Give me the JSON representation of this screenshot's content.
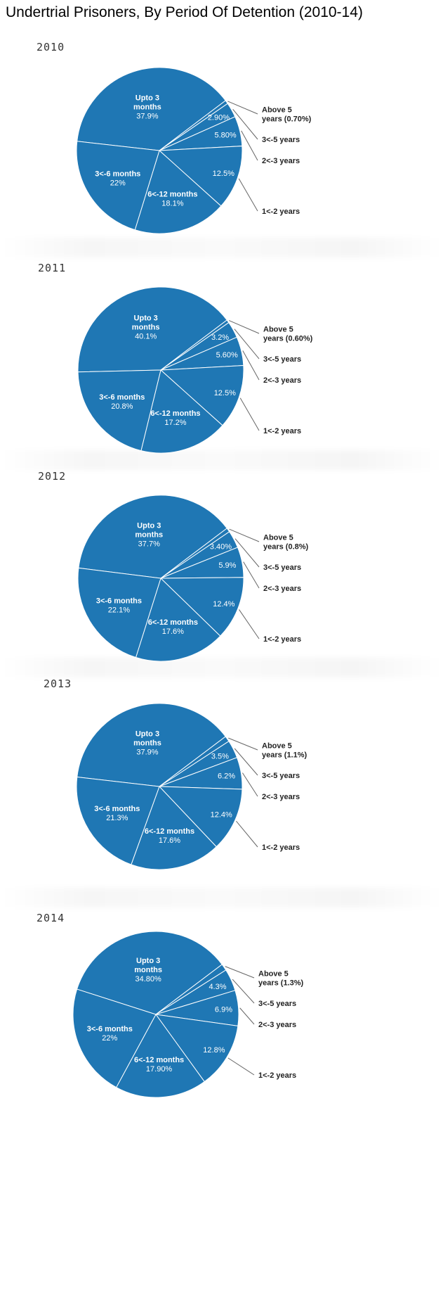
{
  "title": "Undertrial Prisoners, By Period Of Detention (2010-14)",
  "colors": {
    "slice": "#1f77b4",
    "slice_border": "#ffffff",
    "leader": "#666666",
    "outer_text": "#222222",
    "inner_text": "#ffffff"
  },
  "chart_data": [
    {
      "type": "pie",
      "year_label": "2010",
      "slices": [
        {
          "name": "Upto 3 months",
          "value": 37.9,
          "label_lines": [
            "Upto 3",
            "months"
          ],
          "value_label": "37.9%",
          "label_position": "inside"
        },
        {
          "name": "Above 5 years",
          "value": 0.7,
          "label_lines": [
            "Above 5",
            "years (0.70%)"
          ],
          "value_label": "",
          "label_position": "outside"
        },
        {
          "name": "3<-5 years",
          "value": 2.9,
          "label_lines": [
            "3<-5 years"
          ],
          "value_label": "2.90%",
          "label_position": "outside"
        },
        {
          "name": "2<-3 years",
          "value": 5.8,
          "label_lines": [
            "2<-3 years"
          ],
          "value_label": "5.80%",
          "label_position": "outside"
        },
        {
          "name": "1<-2 years",
          "value": 12.5,
          "label_lines": [
            "1<-2 years"
          ],
          "value_label": "12.5%",
          "label_position": "outside"
        },
        {
          "name": "6<-12 months",
          "value": 18.1,
          "label_lines": [
            "6<-12 months"
          ],
          "value_label": "18.1%",
          "label_position": "inside"
        },
        {
          "name": "3<-6 months",
          "value": 22,
          "label_lines": [
            "3<-6 months"
          ],
          "value_label": "22%",
          "label_position": "inside"
        }
      ]
    },
    {
      "type": "pie",
      "year_label": "2011",
      "slices": [
        {
          "name": "Upto 3 months",
          "value": 40.1,
          "label_lines": [
            "Upto 3",
            "months"
          ],
          "value_label": "40.1%",
          "label_position": "inside"
        },
        {
          "name": "Above 5 years",
          "value": 0.6,
          "label_lines": [
            "Above 5",
            "years (0.60%)"
          ],
          "value_label": "",
          "label_position": "outside"
        },
        {
          "name": "3<-5 years",
          "value": 3.2,
          "label_lines": [
            "3<-5 years"
          ],
          "value_label": "3.2%",
          "label_position": "outside"
        },
        {
          "name": "2<-3 years",
          "value": 5.6,
          "label_lines": [
            "2<-3 years"
          ],
          "value_label": "5.60%",
          "label_position": "outside"
        },
        {
          "name": "1<-2 years",
          "value": 12.5,
          "label_lines": [
            "1<-2 years"
          ],
          "value_label": "12.5%",
          "label_position": "outside"
        },
        {
          "name": "6<-12 months",
          "value": 17.2,
          "label_lines": [
            "6<-12 months"
          ],
          "value_label": "17.2%",
          "label_position": "inside"
        },
        {
          "name": "3<-6 months",
          "value": 20.8,
          "label_lines": [
            "3<-6 months"
          ],
          "value_label": "20.8%",
          "label_position": "inside"
        }
      ]
    },
    {
      "type": "pie",
      "year_label": "2012",
      "slices": [
        {
          "name": "Upto 3 months",
          "value": 37.7,
          "label_lines": [
            "Upto 3",
            "months"
          ],
          "value_label": "37.7%",
          "label_position": "inside"
        },
        {
          "name": "Above 5 years",
          "value": 0.8,
          "label_lines": [
            "Above 5",
            "years (0.8%)"
          ],
          "value_label": "",
          "label_position": "outside"
        },
        {
          "name": "3<-5 years",
          "value": 3.4,
          "label_lines": [
            "3<-5 years"
          ],
          "value_label": "3.40%",
          "label_position": "outside"
        },
        {
          "name": "2<-3 years",
          "value": 5.9,
          "label_lines": [
            "2<-3 years"
          ],
          "value_label": "5.9%",
          "label_position": "outside"
        },
        {
          "name": "1<-2 years",
          "value": 12.4,
          "label_lines": [
            "1<-2 years"
          ],
          "value_label": "12.4%",
          "label_position": "outside"
        },
        {
          "name": "6<-12 months",
          "value": 17.6,
          "label_lines": [
            "6<-12 months"
          ],
          "value_label": "17.6%",
          "label_position": "inside"
        },
        {
          "name": "3<-6 months",
          "value": 22.1,
          "label_lines": [
            "3<-6 months"
          ],
          "value_label": "22.1%",
          "label_position": "inside"
        }
      ]
    },
    {
      "type": "pie",
      "year_label": "2013",
      "slices": [
        {
          "name": "Upto 3 months",
          "value": 37.9,
          "label_lines": [
            "Upto 3",
            "months"
          ],
          "value_label": "37.9%",
          "label_position": "inside"
        },
        {
          "name": "Above 5 years",
          "value": 1.1,
          "label_lines": [
            "Above 5",
            "years (1.1%)"
          ],
          "value_label": "",
          "label_position": "outside"
        },
        {
          "name": "3<-5 years",
          "value": 3.5,
          "label_lines": [
            "3<-5 years"
          ],
          "value_label": "3.5%",
          "label_position": "outside"
        },
        {
          "name": "2<-3 years",
          "value": 6.2,
          "label_lines": [
            "2<-3 years"
          ],
          "value_label": "6.2%",
          "label_position": "outside"
        },
        {
          "name": "1<-2 years",
          "value": 12.4,
          "label_lines": [
            "1<-2 years"
          ],
          "value_label": "12.4%",
          "label_position": "outside"
        },
        {
          "name": "6<-12 months",
          "value": 17.6,
          "label_lines": [
            "6<-12 months"
          ],
          "value_label": "17.6%",
          "label_position": "inside"
        },
        {
          "name": "3<-6 months",
          "value": 21.3,
          "label_lines": [
            "3<-6 months"
          ],
          "value_label": "21.3%",
          "label_position": "inside"
        }
      ]
    },
    {
      "type": "pie",
      "year_label": "2014",
      "slices": [
        {
          "name": "Upto 3 months",
          "value": 34.8,
          "label_lines": [
            "Upto 3",
            "months"
          ],
          "value_label": "34.80%",
          "label_position": "inside"
        },
        {
          "name": "Above 5 years",
          "value": 1.3,
          "label_lines": [
            "Above 5",
            "years (1.3%)"
          ],
          "value_label": "",
          "label_position": "outside"
        },
        {
          "name": "3<-5 years",
          "value": 4.3,
          "label_lines": [
            "3<-5 years"
          ],
          "value_label": "4.3%",
          "label_position": "outside"
        },
        {
          "name": "2<-3 years",
          "value": 6.9,
          "label_lines": [
            "2<-3 years"
          ],
          "value_label": "6.9%",
          "label_position": "outside"
        },
        {
          "name": "1<-2 years",
          "value": 12.8,
          "label_lines": [
            "1<-2 years"
          ],
          "value_label": "12.8%",
          "label_position": "outside"
        },
        {
          "name": "6<-12 months",
          "value": 17.9,
          "label_lines": [
            "6<-12 months"
          ],
          "value_label": "17.90%",
          "label_position": "inside"
        },
        {
          "name": "3<-6 months",
          "value": 22,
          "label_lines": [
            "3<-6 months"
          ],
          "value_label": "22%",
          "label_position": "inside"
        }
      ]
    }
  ]
}
